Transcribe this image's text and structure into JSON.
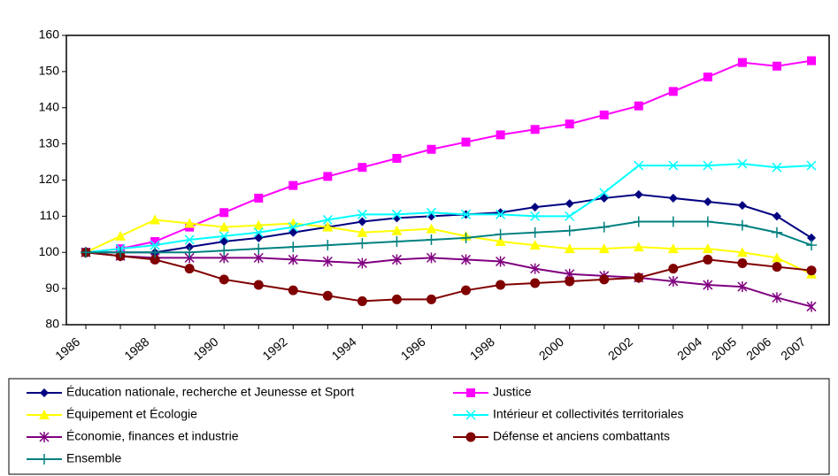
{
  "chart_data": {
    "type": "line",
    "categories": [
      "1986",
      null,
      "1988",
      null,
      "1990",
      null,
      "1992",
      null,
      "1994",
      null,
      "1996",
      null,
      "1998",
      null,
      "2000",
      null,
      "2002",
      null,
      "2004",
      "2005",
      "2006",
      "2007"
    ],
    "ylim": [
      80,
      160
    ],
    "yticks": [
      80,
      90,
      100,
      110,
      120,
      130,
      140,
      150,
      160
    ],
    "grid": false,
    "series": [
      {
        "name": "Éducation nationale, recherche et Jeunesse et Sport",
        "color": "#000080",
        "marker": "diamond",
        "values": [
          100,
          100,
          100,
          101.5,
          103,
          104,
          105.5,
          107,
          108.5,
          109.5,
          110,
          110.5,
          111,
          112.5,
          113.5,
          115,
          116,
          115,
          114,
          113,
          110,
          104
        ]
      },
      {
        "name": "Justice",
        "color": "#ff00ff",
        "marker": "square",
        "values": [
          100,
          101,
          103,
          107,
          111,
          115,
          118.5,
          121,
          123.5,
          126,
          128.5,
          130.5,
          132.5,
          134,
          135.5,
          138,
          140.5,
          144.5,
          148.5,
          152.5,
          151.5,
          153
        ]
      },
      {
        "name": "Équipement et Écologie",
        "color": "#ffff00",
        "marker": "triangle",
        "values": [
          100,
          104.5,
          109,
          108,
          107,
          107.5,
          108,
          107,
          105.5,
          106,
          106.5,
          104.5,
          103,
          102,
          101,
          101,
          101.5,
          101,
          101,
          100,
          98.5,
          94
        ]
      },
      {
        "name": "Intérieur et collectivités territoriales",
        "color": "#00ffff",
        "marker": "x",
        "values": [
          100,
          101,
          102,
          103.5,
          104.5,
          105.5,
          107,
          109,
          110.5,
          110.5,
          111,
          110.5,
          110.5,
          110,
          110,
          116.5,
          124,
          124,
          124,
          124.5,
          123.5,
          124
        ]
      },
      {
        "name": "Économie, finances et industrie",
        "color": "#800080",
        "marker": "star",
        "values": [
          100,
          99,
          98.5,
          98.5,
          98.5,
          98.5,
          98,
          97.5,
          97,
          98,
          98.5,
          98,
          97.5,
          95.5,
          94,
          93.5,
          93,
          92,
          91,
          90.5,
          87.5,
          85
        ]
      },
      {
        "name": "Défense et anciens combattants",
        "color": "#800000",
        "marker": "circle",
        "values": [
          100,
          99,
          98,
          95.5,
          92.5,
          91,
          89.5,
          88,
          86.5,
          87,
          87,
          89.5,
          91,
          91.5,
          92,
          92.5,
          93,
          95.5,
          98,
          97,
          96,
          95
        ]
      },
      {
        "name": "Ensemble",
        "color": "#008080",
        "marker": "plus",
        "values": [
          100,
          100,
          100,
          100,
          100.5,
          101,
          101.5,
          102,
          102.5,
          103,
          103.5,
          104,
          105,
          105.5,
          106,
          107,
          108.5,
          108.5,
          108.5,
          107.5,
          105.5,
          102
        ]
      }
    ]
  }
}
